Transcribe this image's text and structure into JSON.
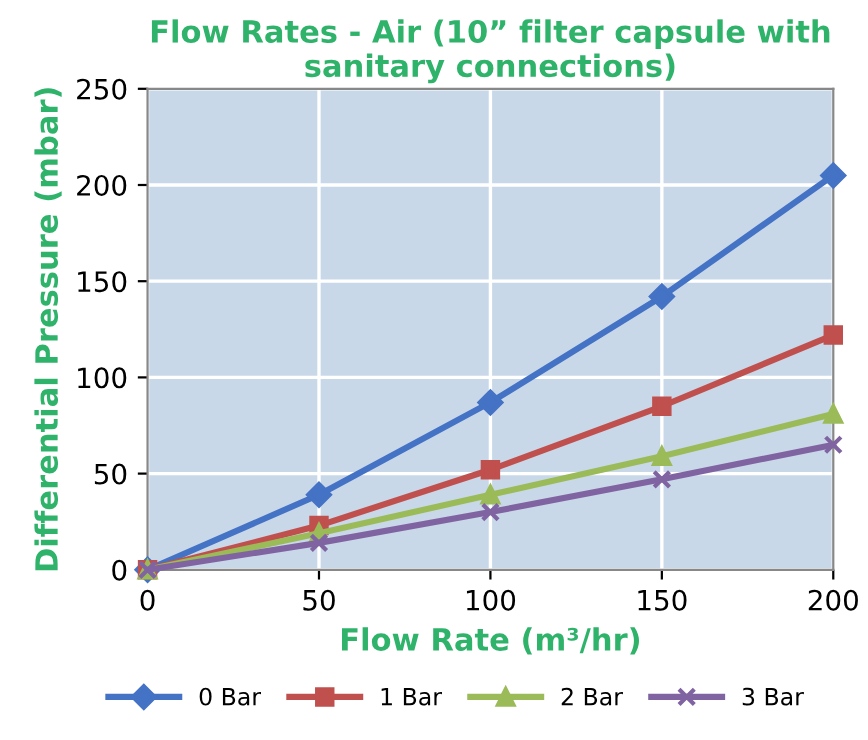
{
  "chart_data": {
    "type": "line",
    "title": "Flow Rates - Air (10” filter capsule with sanitary connections)",
    "xlabel": "Flow Rate (m³/hr)",
    "ylabel": "Differential Pressure (mbar)",
    "x": [
      0,
      50,
      100,
      150,
      200
    ],
    "series": [
      {
        "name": "0 Bar",
        "color": "#4472c4",
        "marker": "diamond",
        "values": [
          0,
          39,
          87,
          142,
          205
        ]
      },
      {
        "name": "1 Bar",
        "color": "#c0504d",
        "marker": "square",
        "values": [
          0,
          23,
          52,
          85,
          122
        ]
      },
      {
        "name": "2 Bar",
        "color": "#9bbb59",
        "marker": "triangle",
        "values": [
          0,
          19,
          39,
          59,
          81
        ]
      },
      {
        "name": "3 Bar",
        "color": "#8064a2",
        "marker": "cross",
        "values": [
          0,
          14,
          30,
          47,
          65
        ]
      }
    ],
    "xlim": [
      0,
      200
    ],
    "xticks": [
      0,
      50,
      100,
      150,
      200
    ],
    "ylim": [
      0,
      250
    ],
    "yticks": [
      0,
      50,
      100,
      150,
      200,
      250
    ],
    "grid": true,
    "legend": "bottom",
    "line_style": "solid"
  }
}
